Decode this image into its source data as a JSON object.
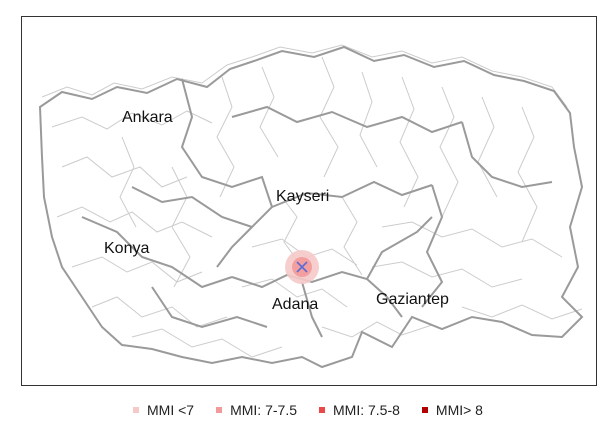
{
  "map": {
    "cities": [
      {
        "id": "ankara",
        "name": "Ankara"
      },
      {
        "id": "kayseri",
        "name": "Kayseri"
      },
      {
        "id": "konya",
        "name": "Konya"
      },
      {
        "id": "adana",
        "name": "Adana"
      },
      {
        "id": "gaziantep",
        "name": "Gaziantep"
      }
    ],
    "epicenter_marker": "x-marker-icon",
    "colors": {
      "province_border": "#9a9a9a",
      "district_border": "#cccccc",
      "epicenter": "#5b6cd6"
    }
  },
  "legend": [
    {
      "label": "MMI <7",
      "color": "#f6c9c9"
    },
    {
      "label": "MMI: 7-7.5",
      "color": "#f29a9a"
    },
    {
      "label": "MMI: 7.5-8",
      "color": "#e84848"
    },
    {
      "label": "MMI> 8",
      "color": "#b00000"
    }
  ]
}
